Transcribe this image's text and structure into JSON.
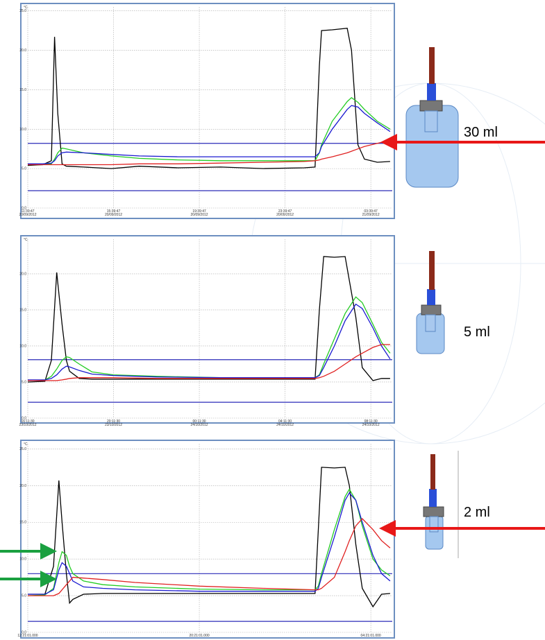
{
  "chart_data": [
    {
      "type": "line",
      "y_unit": "°C",
      "volume_label": "30 ml",
      "x": [
        0,
        0.7,
        1.1,
        1.25,
        1.4,
        1.6,
        1.8,
        2.6,
        3.9,
        5.2,
        7,
        9,
        11,
        12.9,
        13.4,
        13.6,
        13.7,
        14.2,
        14.9,
        15.1,
        15.4,
        15.7,
        16.3,
        16.9
      ],
      "xlim": [
        0,
        17
      ],
      "ylim": [
        0,
        25.5
      ],
      "xticks": [
        {
          "value": 0,
          "label": "11:39:47",
          "date": "20/09/2012"
        },
        {
          "value": 4,
          "label": "15:39:47",
          "date": "20/09/2012"
        },
        {
          "value": 8,
          "label": "19:39:47",
          "date": "20/09/2012"
        },
        {
          "value": 12,
          "label": "23:39:47",
          "date": "20/09/2012"
        },
        {
          "value": 16,
          "label": "03:39:47",
          "date": "21/09/2012"
        }
      ],
      "yticks": [
        {
          "value": 0,
          "label": "0.0"
        },
        {
          "value": 5,
          "label": "5.0"
        },
        {
          "value": 10,
          "label": "10.0"
        },
        {
          "value": 15,
          "label": "15.0"
        },
        {
          "value": 20,
          "label": "20.0"
        },
        {
          "value": 25,
          "label": "25.0"
        }
      ],
      "grid": true,
      "series": [
        {
          "color": "#000000",
          "values": [
            5.4,
            5.5,
            6,
            21.7,
            12,
            5.6,
            5.3,
            5.2,
            5.0,
            5.3,
            5.1,
            5.2,
            5.0,
            5.1,
            5.2,
            18,
            22.5,
            22.6,
            22.8,
            20,
            8,
            6.2,
            5.8,
            5.9
          ]
        },
        {
          "color": "#22cc22",
          "values": [
            5.5,
            5.5,
            5.6,
            6.2,
            7,
            7.6,
            7.5,
            7,
            6.6,
            6.3,
            6.1,
            6,
            6,
            6,
            6,
            7,
            8,
            11,
            13.5,
            14,
            13.4,
            12.5,
            11,
            10
          ]
        },
        {
          "color": "#1a1ad0",
          "values": [
            5.6,
            5.6,
            5.7,
            6,
            6.6,
            7,
            7.1,
            7,
            6.8,
            6.6,
            6.5,
            6.5,
            6.5,
            6.5,
            6.5,
            7,
            7.8,
            10,
            12.5,
            13,
            12.8,
            12,
            10.8,
            9.7
          ]
        },
        {
          "color": "#e02020",
          "values": [
            5.5,
            5.5,
            5.5,
            5.5,
            5.5,
            5.5,
            5.5,
            5.5,
            5.5,
            5.6,
            5.6,
            5.7,
            5.8,
            5.9,
            6,
            6.1,
            6.2,
            6.5,
            7,
            7.2,
            7.5,
            7.8,
            8.2,
            8.6
          ]
        }
      ],
      "reference_lines": {
        "color": "#2a2ab8",
        "values": [
          8.2,
          2.2
        ]
      }
    },
    {
      "type": "line",
      "y_unit": "°C",
      "volume_label": "5 ml",
      "x": [
        0,
        0.8,
        1.1,
        1.35,
        1.6,
        1.8,
        1.95,
        2.4,
        3,
        4,
        6,
        9,
        12,
        13.4,
        13.6,
        13.8,
        14.3,
        14.8,
        15.3,
        15.6,
        16.1,
        16.5,
        16.9
      ],
      "xlim": [
        0,
        17
      ],
      "ylim": [
        0,
        24.8
      ],
      "xticks": [
        {
          "value": 0,
          "label": "16:11:30",
          "date": "23/10/2012"
        },
        {
          "value": 4,
          "label": "20:11:30",
          "date": "23/10/2012"
        },
        {
          "value": 8,
          "label": "00:11:30",
          "date": "24/10/2012"
        },
        {
          "value": 12,
          "label": "04:11:30",
          "date": "24/10/2012"
        },
        {
          "value": 16,
          "label": "08:11:30",
          "date": "24/10/2012"
        }
      ],
      "yticks": [
        {
          "value": 0,
          "label": "0.0"
        },
        {
          "value": 5,
          "label": "5.0"
        },
        {
          "value": 10,
          "label": "10.0"
        },
        {
          "value": 15,
          "label": "15.0"
        },
        {
          "value": 20,
          "label": "20.0"
        }
      ],
      "grid": true,
      "series": [
        {
          "color": "#000000",
          "values": [
            5.0,
            5.1,
            8,
            20.2,
            13,
            8,
            6.5,
            5.5,
            5.4,
            5.4,
            5.4,
            5.4,
            5.4,
            5.4,
            15,
            22.4,
            22.3,
            22.4,
            14,
            7,
            5.2,
            5.5,
            5.5
          ]
        },
        {
          "color": "#22cc22",
          "values": [
            5.2,
            5.3,
            5.8,
            6.8,
            8,
            8.5,
            8.4,
            7.5,
            6.4,
            6,
            5.8,
            5.6,
            5.6,
            5.6,
            6,
            7.5,
            11,
            14.5,
            16.8,
            16,
            13,
            10.5,
            9
          ]
        },
        {
          "color": "#1a1ad0",
          "values": [
            5.3,
            5.3,
            5.5,
            6,
            6.8,
            7.2,
            7.1,
            6.6,
            6.1,
            5.9,
            5.7,
            5.6,
            5.6,
            5.6,
            5.9,
            7,
            10,
            13.5,
            15.8,
            15.2,
            12.5,
            10,
            8.2
          ]
        },
        {
          "color": "#e02020",
          "values": [
            5.2,
            5.2,
            5.2,
            5.2,
            5.3,
            5.4,
            5.5,
            5.6,
            5.6,
            5.6,
            5.5,
            5.5,
            5.5,
            5.5,
            5.6,
            5.8,
            6.5,
            7.5,
            8.5,
            9,
            9.8,
            10.2,
            10.2
          ]
        }
      ],
      "reference_lines": {
        "color": "#2a2ab8",
        "values": [
          8.1,
          2.2
        ]
      }
    },
    {
      "type": "line",
      "y_unit": "°C",
      "volume_label": "2 ml",
      "x": [
        0,
        0.8,
        1.2,
        1.45,
        1.6,
        1.8,
        1.95,
        2.1,
        2.6,
        3.5,
        5,
        8,
        11,
        13.4,
        13.55,
        13.7,
        14.3,
        14.8,
        15,
        15.3,
        15.6,
        16.1,
        16.5,
        16.9
      ],
      "xlim": [
        0,
        17
      ],
      "ylim": [
        0,
        25.7
      ],
      "xticks": [
        {
          "value": 0,
          "label": "12:21:01.000"
        },
        {
          "value": 8,
          "label": "20:21:01.000"
        },
        {
          "value": 16,
          "label": "04:21:01.000"
        }
      ],
      "yticks": [
        {
          "value": 0,
          "label": "0.0"
        },
        {
          "value": 5,
          "label": "5.0"
        },
        {
          "value": 10,
          "label": "10.0"
        },
        {
          "value": 15,
          "label": "15.0"
        },
        {
          "value": 20,
          "label": "20.0"
        },
        {
          "value": 25,
          "label": "25.0"
        }
      ],
      "grid": true,
      "series": [
        {
          "color": "#000000",
          "values": [
            5.2,
            5.2,
            9,
            20.7,
            15,
            8,
            4,
            4.5,
            5.2,
            5.3,
            5.3,
            5.3,
            5.3,
            5.3,
            14,
            22.5,
            22.4,
            22.5,
            20,
            12,
            6,
            3.5,
            5.2,
            5.3
          ]
        },
        {
          "color": "#22cc22",
          "values": [
            5.0,
            5.1,
            6,
            9.5,
            11,
            10.5,
            9,
            8,
            7,
            6.5,
            6.2,
            5.9,
            5.8,
            5.8,
            6.3,
            8,
            14,
            18.5,
            19.5,
            18,
            14.5,
            10,
            8.5,
            7.7
          ]
        },
        {
          "color": "#1a1ad0",
          "values": [
            5.2,
            5.2,
            5.8,
            8.5,
            9.5,
            9,
            8,
            7,
            6.2,
            6,
            5.8,
            5.6,
            5.6,
            5.6,
            6,
            7.5,
            13,
            18,
            19,
            18,
            15,
            10.5,
            8,
            7
          ]
        },
        {
          "color": "#e02020",
          "values": [
            5.0,
            5.0,
            5.0,
            5.3,
            5.8,
            6.5,
            7,
            7.5,
            7.4,
            7.2,
            6.8,
            6.3,
            6,
            5.8,
            5.8,
            6,
            7.5,
            11,
            12.5,
            14.5,
            15.5,
            14,
            12.5,
            11.5
          ]
        }
      ],
      "reference_lines": {
        "color": "#2a2ab8",
        "values": [
          8,
          1.5
        ]
      }
    }
  ]
}
